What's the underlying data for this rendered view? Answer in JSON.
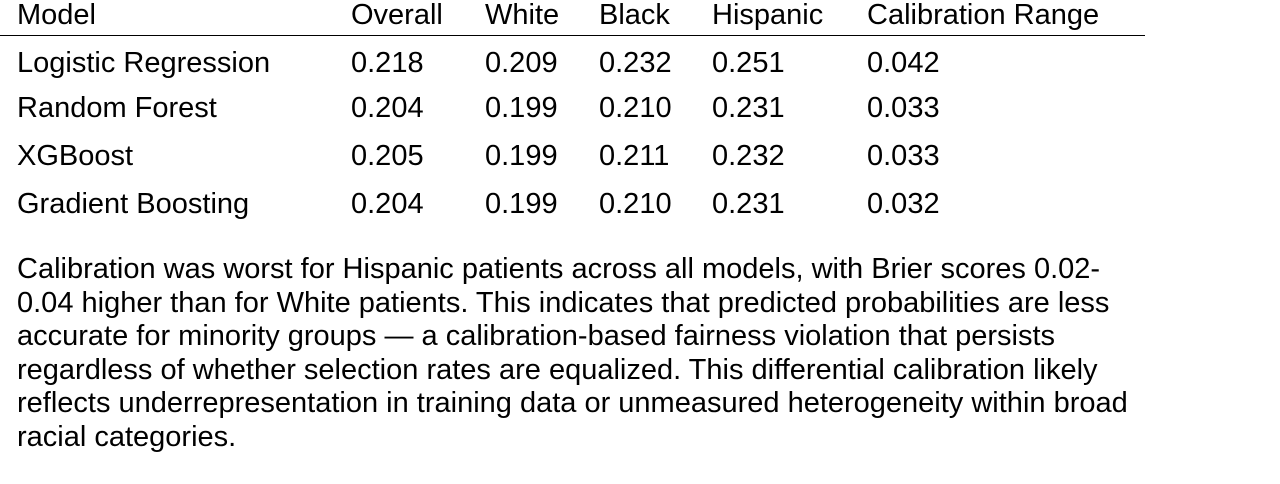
{
  "table": {
    "headers": [
      "Model",
      "Overall",
      "White",
      "Black",
      "Hispanic",
      "Calibration Range"
    ],
    "rows": [
      [
        "Logistic Regression",
        "0.218",
        "0.209",
        "0.232",
        "0.251",
        "0.042"
      ],
      [
        "Random Forest",
        "0.204",
        "0.199",
        "0.210",
        "0.231",
        "0.033"
      ],
      [
        "XGBoost",
        "0.205",
        "0.199",
        "0.211",
        "0.232",
        "0.033"
      ],
      [
        "Gradient Boosting",
        "0.204",
        "0.199",
        "0.210",
        "0.231",
        "0.032"
      ]
    ]
  },
  "caption": {
    "text": "Calibration was worst for Hispanic patients across all models, with Brier scores 0.02-\n0.04 higher than for White patients. This indicates that predicted probabilities are less\naccurate for minority groups — a calibration-based fairness violation that persists\nregardless of whether selection rates are equalized. This differential calibration likely\nreflects underrepresentation in training data or unmeasured heterogeneity within broad\nracial categories."
  }
}
